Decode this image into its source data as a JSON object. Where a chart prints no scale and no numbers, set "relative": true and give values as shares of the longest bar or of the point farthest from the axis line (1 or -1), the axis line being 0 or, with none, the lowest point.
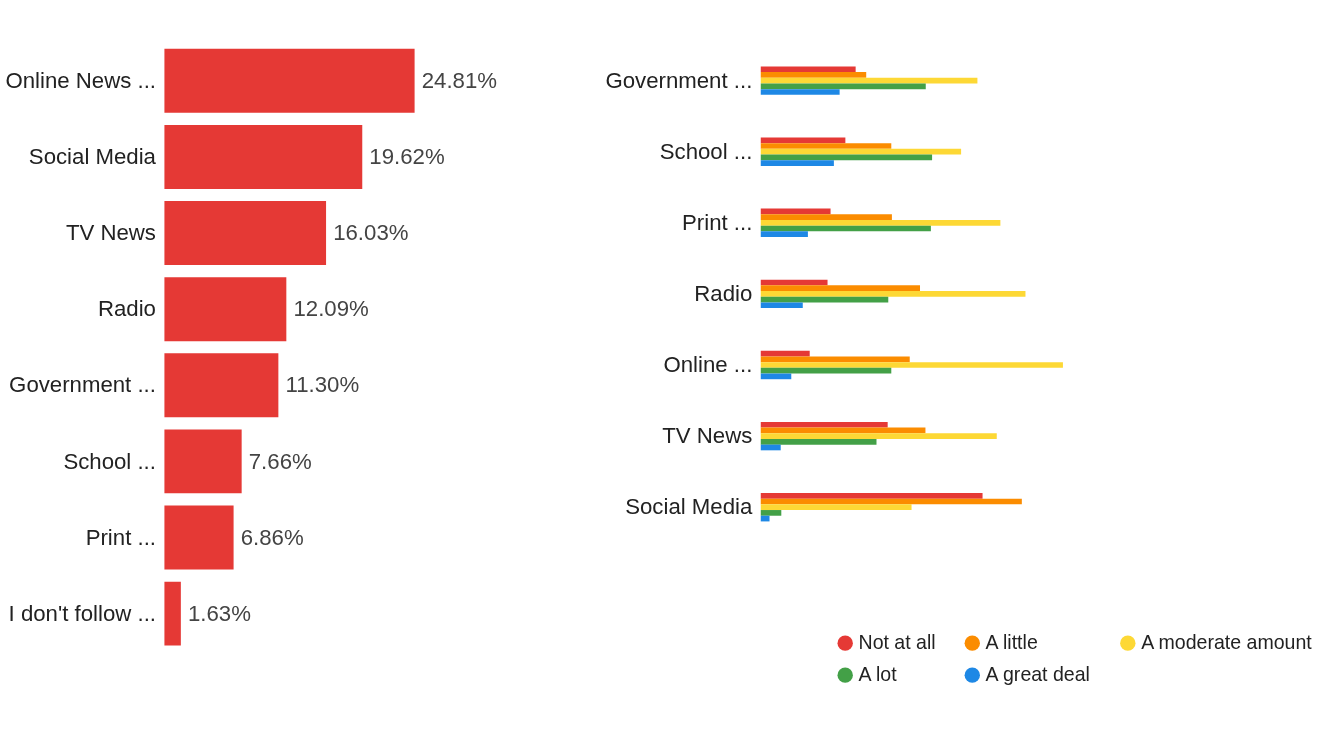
{
  "chart_data": [
    {
      "type": "bar",
      "orientation": "horizontal",
      "categories": [
        "Online News ...",
        "Social Media",
        "TV News",
        "Radio",
        "Government ...",
        "School ...",
        "Print ...",
        "I don't follow ..."
      ],
      "values": [
        24.81,
        19.62,
        16.03,
        12.09,
        11.3,
        7.66,
        6.86,
        1.63
      ],
      "value_labels": [
        "24.81%",
        "19.62%",
        "16.03%",
        "12.09%",
        "11.30%",
        "7.66%",
        "6.86%",
        "1.63%"
      ],
      "color": "#e53935",
      "grid": false,
      "tick_labels": "y"
    },
    {
      "type": "bar",
      "orientation": "horizontal",
      "relative": true,
      "categories": [
        "Government ...",
        "School ...",
        "Print ...",
        "Radio",
        "Online ...",
        "TV News",
        "Social Media"
      ],
      "legend": "bottom",
      "grid": false,
      "series": [
        {
          "name": "Not at all",
          "color": "#e53935",
          "values": [
            0.314,
            0.28,
            0.231,
            0.221,
            0.162,
            0.42,
            0.734
          ]
        },
        {
          "name": "A little",
          "color": "#fb8c00",
          "values": [
            0.349,
            0.432,
            0.434,
            0.527,
            0.493,
            0.545,
            0.864
          ]
        },
        {
          "name": "A moderate amount",
          "color": "#fdd835",
          "values": [
            0.717,
            0.663,
            0.793,
            0.876,
            1.0,
            0.781,
            0.499
          ]
        },
        {
          "name": "A lot",
          "color": "#43a047",
          "values": [
            0.546,
            0.567,
            0.563,
            0.422,
            0.432,
            0.383,
            0.068
          ]
        },
        {
          "name": "A great deal",
          "color": "#1e88e5",
          "values": [
            0.261,
            0.242,
            0.156,
            0.139,
            0.101,
            0.066,
            0.029
          ]
        }
      ]
    }
  ]
}
